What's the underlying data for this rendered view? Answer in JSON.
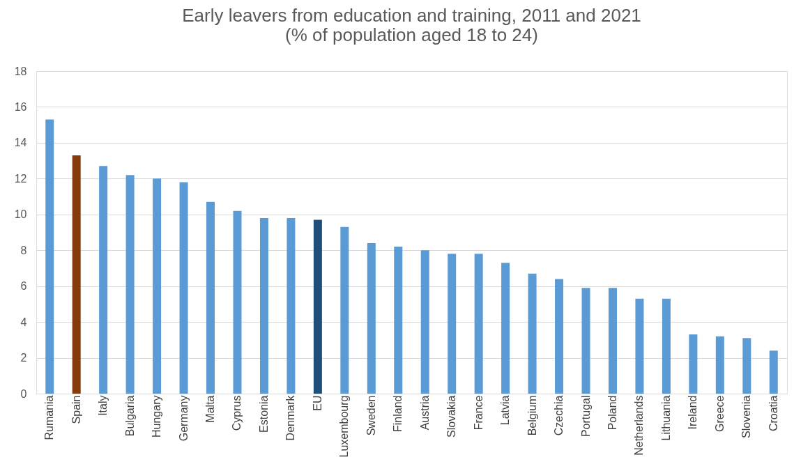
{
  "chart_data": {
    "type": "bar",
    "title": "Early leavers from education and training, 2011 and 2021 (% of population aged 18 to 24)",
    "categories": [
      "Rumania",
      "Spain",
      "Italy",
      "Bulgaria",
      "Hungary",
      "Germany",
      "Malta",
      "Cyprus",
      "Estonia",
      "Denmark",
      "EU",
      "Luxembourg",
      "Sweden",
      "Finland",
      "Austria",
      "Slovakia",
      "France",
      "Latvia",
      "Belgium",
      "Czechia",
      "Portugal",
      "Poland",
      "Netherlands",
      "Lithuania",
      "Ireland",
      "Greece",
      "Slovenia",
      "Croatia"
    ],
    "values": [
      15.3,
      13.3,
      12.7,
      12.2,
      12.0,
      11.8,
      10.7,
      10.2,
      9.8,
      9.8,
      9.7,
      9.3,
      8.4,
      8.2,
      8.0,
      7.8,
      7.8,
      7.3,
      6.7,
      6.4,
      5.9,
      5.9,
      5.3,
      5.3,
      3.3,
      3.2,
      3.1,
      2.4
    ],
    "colors": [
      "#5b9bd5",
      "#843c0c",
      "#5b9bd5",
      "#5b9bd5",
      "#5b9bd5",
      "#5b9bd5",
      "#5b9bd5",
      "#5b9bd5",
      "#5b9bd5",
      "#5b9bd5",
      "#1f4e79",
      "#5b9bd5",
      "#5b9bd5",
      "#5b9bd5",
      "#5b9bd5",
      "#5b9bd5",
      "#5b9bd5",
      "#5b9bd5",
      "#5b9bd5",
      "#5b9bd5",
      "#5b9bd5",
      "#5b9bd5",
      "#5b9bd5",
      "#5b9bd5",
      "#5b9bd5",
      "#5b9bd5",
      "#5b9bd5",
      "#5b9bd5"
    ],
    "ylim": [
      0,
      18
    ],
    "yticks": [
      0,
      2,
      4,
      6,
      8,
      10,
      12,
      14,
      16,
      18
    ],
    "grid": "y"
  }
}
